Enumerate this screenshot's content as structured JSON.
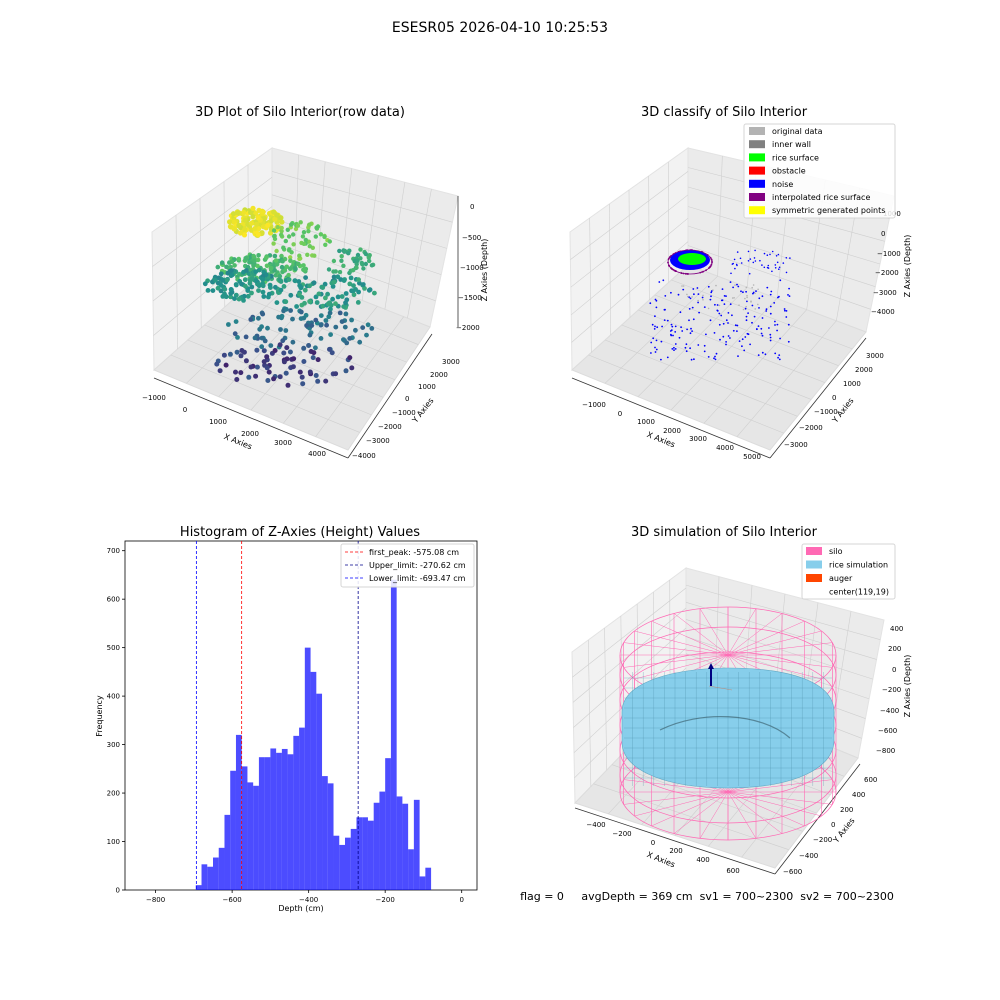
{
  "figure": {
    "title": "ESESR05 2026-04-10 10:25:53",
    "footer": "flag = 0     avgDepth = 369 cm  sv1 = 700~2300  sv2 = 700~2300"
  },
  "chart_data": [
    {
      "type": "scatter3d",
      "title": "3D Plot of Silo Interior(row data)",
      "xlabel": "X Axies",
      "ylabel": "Y Axies",
      "zlabel": "Z Axies (Depth)",
      "xlim": [
        -1200,
        4600
      ],
      "ylim": [
        -4200,
        3600
      ],
      "zlim": [
        -2400,
        100
      ],
      "xticks": [
        "−1000",
        "0",
        "1000",
        "2000",
        "3000",
        "4000"
      ],
      "yticks": [
        "−4000",
        "−3000",
        "−2000",
        "−1000",
        "0",
        "1000",
        "2000",
        "3000"
      ],
      "zticks": [
        "0",
        "−500",
        "−1000",
        "−1500",
        "−2000"
      ],
      "colormap": "viridis"
    },
    {
      "type": "scatter3d",
      "title": "3D classify of Silo Interior",
      "xlabel": "X Axies",
      "ylabel": "Y Axies",
      "zlabel": "Z Axies (Depth)",
      "xticks": [
        "−1000",
        "0",
        "1000",
        "2000",
        "3000",
        "4000",
        "5000"
      ],
      "yticks": [
        "−3000",
        "−2000",
        "−1000",
        "0",
        "1000",
        "2000",
        "3000"
      ],
      "zticks": [
        "1000",
        "0",
        "−1000",
        "−2000",
        "−3000",
        "−4000"
      ],
      "legend_position": "top-right",
      "legend": [
        {
          "label": "original data",
          "color": "#b3b3b3"
        },
        {
          "label": "inner wall",
          "color": "#808080"
        },
        {
          "label": "rice surface",
          "color": "#00ff00"
        },
        {
          "label": "obstacle",
          "color": "#ff0000"
        },
        {
          "label": "noise",
          "color": "#0000ff"
        },
        {
          "label": "interpolated rice surface",
          "color": "#800080"
        },
        {
          "label": "symmetric generated points",
          "color": "#ffff00"
        }
      ]
    },
    {
      "type": "bar",
      "title": "Histogram of Z-Axies (Height) Values",
      "xlabel": "Depth (cm)",
      "ylabel": "Frequency",
      "xlim": [
        -880,
        40
      ],
      "ylim": [
        0,
        720
      ],
      "xticks": [
        -800,
        -600,
        -400,
        -200,
        0
      ],
      "xtick_labels": [
        "−800",
        "−600",
        "−400",
        "−200",
        "0"
      ],
      "yticks": [
        0,
        100,
        200,
        300,
        400,
        500,
        600,
        700
      ],
      "bar_color": "#0000ff",
      "bin_start": -695,
      "bin_width": 15,
      "values": [
        10,
        53,
        48,
        67,
        87,
        155,
        246,
        320,
        255,
        222,
        215,
        274,
        274,
        292,
        283,
        291,
        280,
        318,
        335,
        500,
        450,
        405,
        235,
        220,
        112,
        93,
        108,
        126,
        150,
        150,
        143,
        180,
        203,
        272,
        640,
        193,
        178,
        84,
        186,
        28,
        46
      ],
      "lines": [
        {
          "label": "first_peak: -575.08 cm",
          "x": -575.08,
          "color": "#ff0000"
        },
        {
          "label": "Upper_limit: -270.62 cm",
          "x": -270.62,
          "color": "#00008b"
        },
        {
          "label": "Lower_limit: -693.47 cm",
          "x": -693.47,
          "color": "#0000ff"
        }
      ],
      "legend_position": "top-right"
    },
    {
      "type": "surface3d",
      "title": "3D simulation of Silo Interior",
      "xlabel": "X Axies",
      "ylabel": "Y Axies",
      "zlabel": "Z Axies (Depth)",
      "xticks": [
        "−400",
        "−200",
        "0",
        "200",
        "400",
        "600"
      ],
      "yticks": [
        "−600",
        "−400",
        "−200",
        "0",
        "200",
        "400",
        "600"
      ],
      "zticks": [
        "400",
        "200",
        "0",
        "−200",
        "−400",
        "−600",
        "−800"
      ],
      "legend_position": "top-right",
      "legend": [
        {
          "label": "silo",
          "color": "#ff69b4"
        },
        {
          "label": "rice simulation",
          "color": "#87ceeb"
        },
        {
          "label": "auger",
          "color": "#ff4500"
        },
        {
          "label": "center(119,19)",
          "color": ""
        }
      ]
    }
  ]
}
